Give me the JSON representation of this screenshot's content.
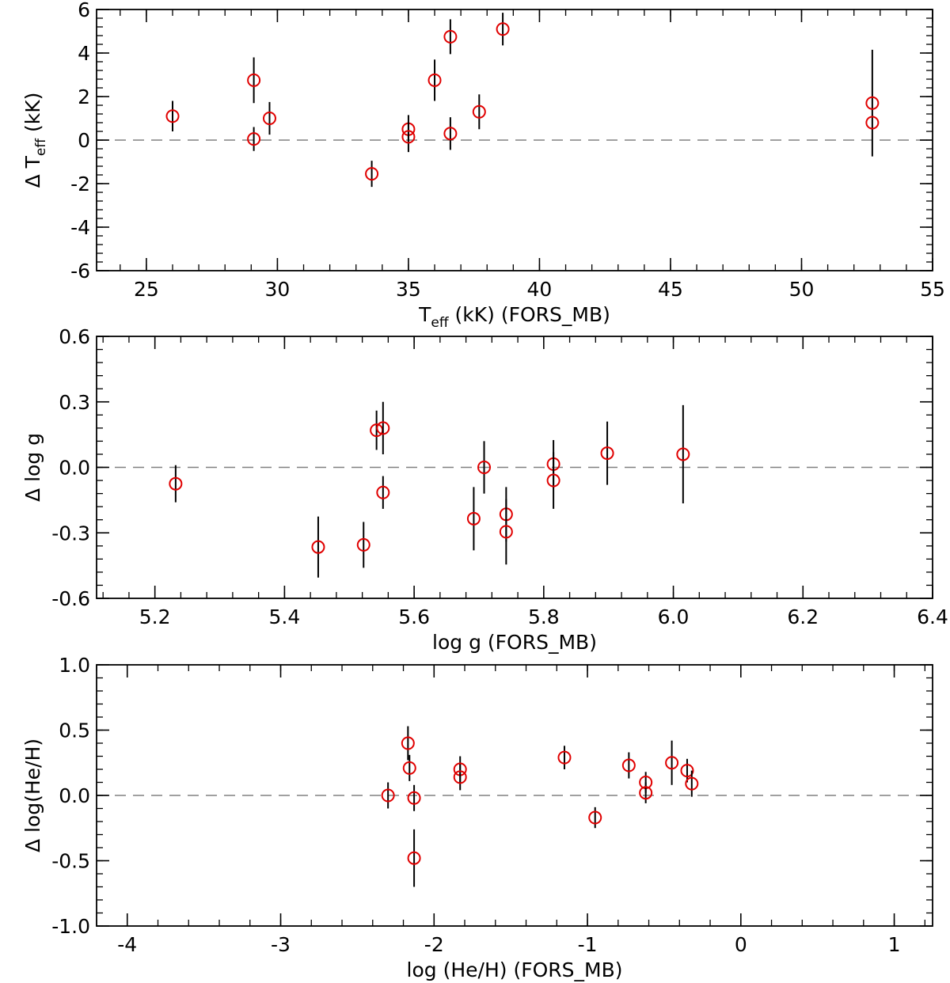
{
  "chart_data": [
    {
      "type": "scatter",
      "xlabel": "T",
      "xlabel_sub": "eff",
      "xlabel_suffix": " (kK) (FORS_MB)",
      "ylabel": "Δ T",
      "ylabel_sub": "eff",
      "ylabel_suffix": " (kK)",
      "xlim": [
        23.1,
        55
      ],
      "ylim": [
        -6,
        6
      ],
      "xticks": [
        25,
        30,
        35,
        40,
        45,
        50,
        55
      ],
      "xtick_labels": [
        "25",
        "30",
        "35",
        "40",
        "45",
        "50",
        "55"
      ],
      "yticks": [
        -6,
        -4,
        -2,
        0,
        2,
        4,
        6
      ],
      "ytick_labels": [
        "-6",
        "-4",
        "-2",
        "0",
        "2",
        "4",
        "6"
      ],
      "reference_line": 0,
      "points": [
        {
          "x": 26.0,
          "y": 1.1,
          "err": 0.7
        },
        {
          "x": 29.1,
          "y": 2.75,
          "err": 1.05
        },
        {
          "x": 29.1,
          "y": 0.05,
          "err": 0.55
        },
        {
          "x": 29.7,
          "y": 1.0,
          "err": 0.75
        },
        {
          "x": 33.6,
          "y": -1.55,
          "err": 0.6
        },
        {
          "x": 35.0,
          "y": 0.5,
          "err": 0.65
        },
        {
          "x": 35.0,
          "y": 0.15,
          "err": 0.7
        },
        {
          "x": 36.0,
          "y": 2.75,
          "err": 0.95
        },
        {
          "x": 36.6,
          "y": 4.75,
          "err": 0.8
        },
        {
          "x": 36.6,
          "y": 0.3,
          "err": 0.75
        },
        {
          "x": 37.7,
          "y": 1.3,
          "err": 0.8
        },
        {
          "x": 38.6,
          "y": 5.1,
          "err": 0.75
        },
        {
          "x": 52.7,
          "y": 1.7,
          "err": 2.45
        },
        {
          "x": 52.7,
          "y": 0.8,
          "err": 0.0
        }
      ]
    },
    {
      "type": "scatter",
      "xlabel": "log g (FORS_MB)",
      "ylabel": "Δ log g",
      "xlim": [
        5.11,
        6.4
      ],
      "ylim": [
        -0.6,
        0.6
      ],
      "xticks": [
        5.2,
        5.4,
        5.6,
        5.8,
        6.0,
        6.2,
        6.4
      ],
      "xtick_labels": [
        "5.2",
        "5.4",
        "5.6",
        "5.8",
        "6.0",
        "6.2",
        "6.4"
      ],
      "yticks": [
        -0.6,
        -0.3,
        0.0,
        0.3,
        0.6
      ],
      "ytick_labels": [
        "-0.6",
        "-0.3",
        "0.0",
        "0.3",
        "0.6"
      ],
      "reference_line": 0,
      "points": [
        {
          "x": 5.232,
          "y": -0.075,
          "err": 0.085
        },
        {
          "x": 5.452,
          "y": -0.365,
          "err": 0.14
        },
        {
          "x": 5.522,
          "y": -0.355,
          "err": 0.105
        },
        {
          "x": 5.542,
          "y": 0.17,
          "err": 0.09
        },
        {
          "x": 5.552,
          "y": 0.18,
          "err": 0.12
        },
        {
          "x": 5.552,
          "y": -0.115,
          "err": 0.075
        },
        {
          "x": 5.692,
          "y": -0.235,
          "err": 0.145
        },
        {
          "x": 5.708,
          "y": 0.0,
          "err": 0.12
        },
        {
          "x": 5.742,
          "y": -0.215,
          "err": 0.125
        },
        {
          "x": 5.742,
          "y": -0.295,
          "err": 0.15
        },
        {
          "x": 5.815,
          "y": 0.015,
          "err": 0.11
        },
        {
          "x": 5.815,
          "y": -0.06,
          "err": 0.13
        },
        {
          "x": 5.898,
          "y": 0.065,
          "err": 0.145
        },
        {
          "x": 6.015,
          "y": 0.06,
          "err": 0.225
        }
      ]
    },
    {
      "type": "scatter",
      "xlabel": "log (He/H) (FORS_MB)",
      "ylabel": "Δ log(He/H)",
      "xlim": [
        -4.2,
        1.25
      ],
      "ylim": [
        -1.0,
        1.0
      ],
      "xticks": [
        -4,
        -3,
        -2,
        -1,
        0,
        1
      ],
      "xtick_labels": [
        "-4",
        "-3",
        "-2",
        "-1",
        "0",
        "1"
      ],
      "yticks": [
        -1.0,
        -0.5,
        0.0,
        0.5,
        1.0
      ],
      "ytick_labels": [
        "-1.0",
        "-0.5",
        "0.0",
        "0.5",
        "1.0"
      ],
      "reference_line": 0,
      "points": [
        {
          "x": -2.3,
          "y": 0.0,
          "err": 0.1
        },
        {
          "x": -2.17,
          "y": 0.4,
          "err": 0.13
        },
        {
          "x": -2.16,
          "y": 0.21,
          "err": 0.1
        },
        {
          "x": -2.13,
          "y": -0.02,
          "err": 0.1
        },
        {
          "x": -2.13,
          "y": -0.48,
          "err": 0.22
        },
        {
          "x": -1.83,
          "y": 0.2,
          "err": 0.1
        },
        {
          "x": -1.83,
          "y": 0.14,
          "err": 0.1
        },
        {
          "x": -1.15,
          "y": 0.29,
          "err": 0.09
        },
        {
          "x": -0.95,
          "y": -0.17,
          "err": 0.08
        },
        {
          "x": -0.73,
          "y": 0.23,
          "err": 0.1
        },
        {
          "x": -0.62,
          "y": 0.1,
          "err": 0.08
        },
        {
          "x": -0.62,
          "y": 0.02,
          "err": 0.08
        },
        {
          "x": -0.45,
          "y": 0.25,
          "err": 0.17
        },
        {
          "x": -0.35,
          "y": 0.19,
          "err": 0.09
        },
        {
          "x": -0.32,
          "y": 0.09,
          "err": 0.1
        }
      ]
    }
  ]
}
